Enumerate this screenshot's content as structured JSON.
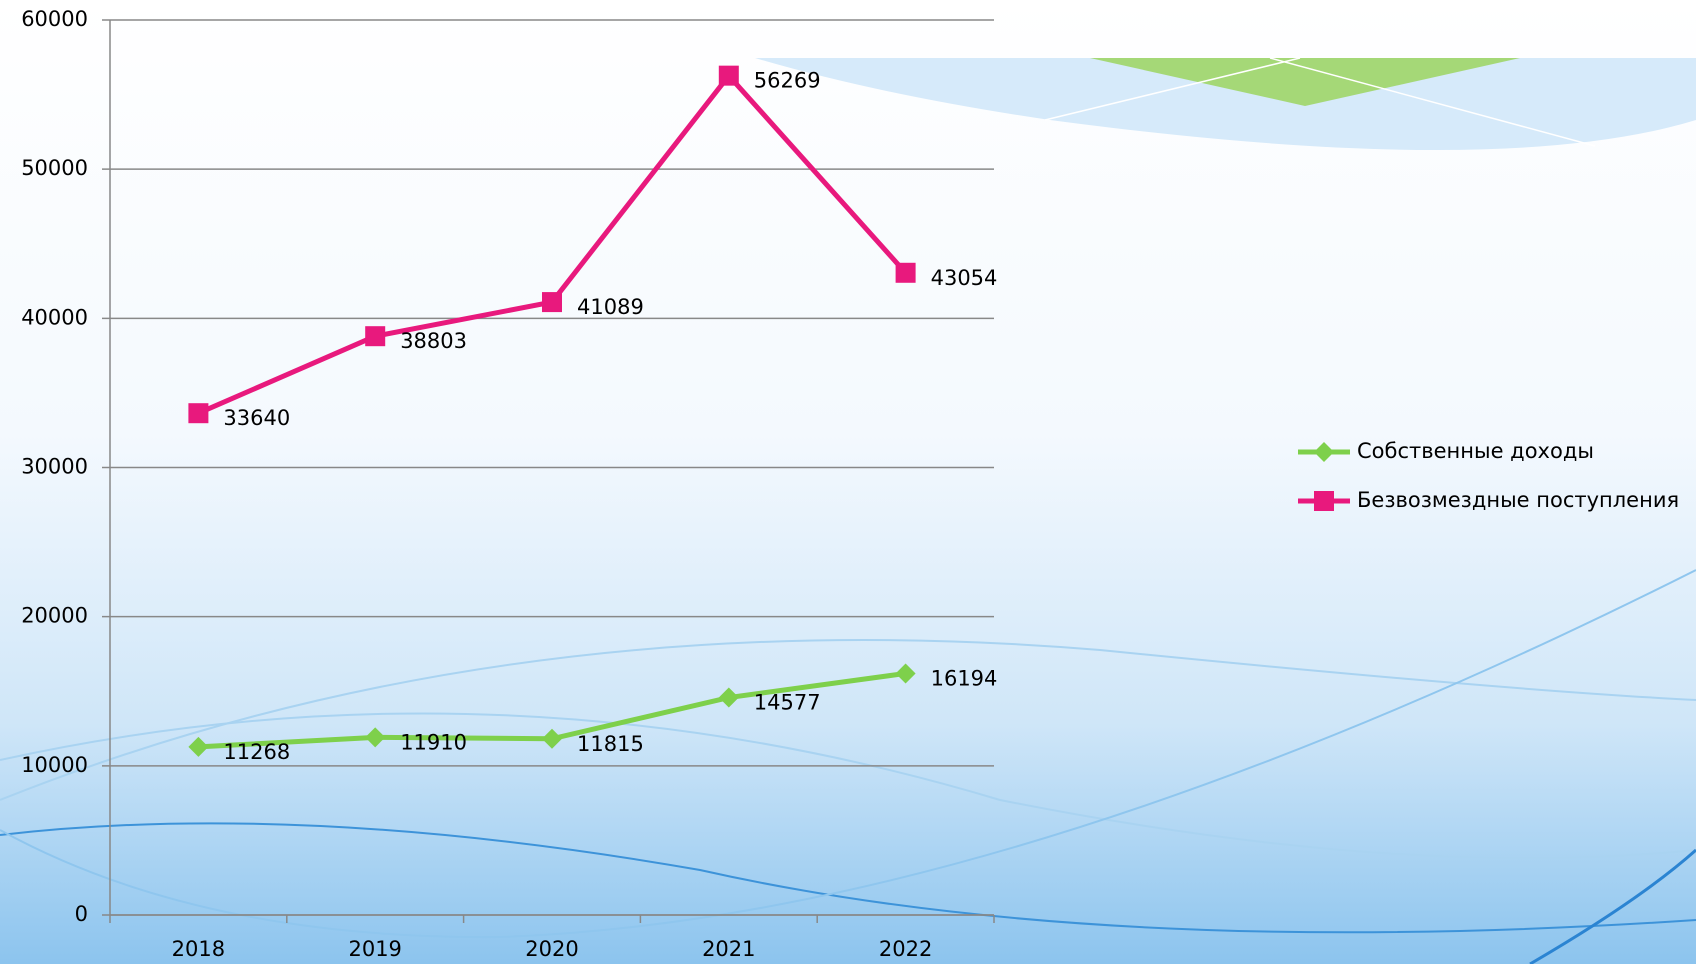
{
  "chart_data": {
    "type": "line",
    "categories": [
      "2018",
      "2019",
      "2020",
      "2021",
      "2022"
    ],
    "series": [
      {
        "name": "Собственные доходы",
        "color": "#7ed04b",
        "marker": "diamond",
        "values": [
          11268,
          11910,
          11815,
          14577,
          16194
        ]
      },
      {
        "name": "Безвозмездные поступления",
        "color": "#e8197d",
        "marker": "square",
        "values": [
          33640,
          38803,
          41089,
          56269,
          43054
        ]
      }
    ],
    "ylim": [
      0,
      60000
    ],
    "yticks": [
      0,
      10000,
      20000,
      30000,
      40000,
      50000,
      60000
    ],
    "grid": true,
    "legend": "right"
  }
}
